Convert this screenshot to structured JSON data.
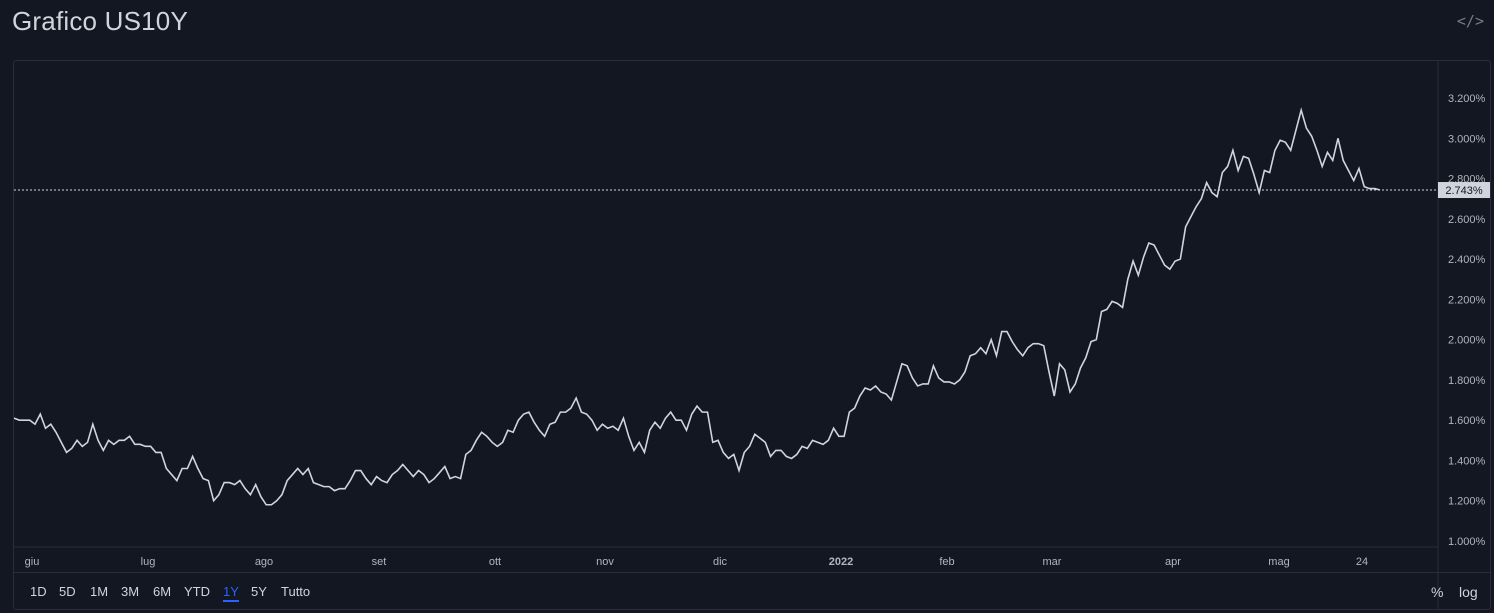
{
  "header": {
    "title": "Grafico US10Y",
    "embed_icon": "code-embed-icon"
  },
  "toolbar": {
    "ranges": [
      "1D",
      "5D",
      "1M",
      "3M",
      "6M",
      "YTD",
      "1Y",
      "5Y",
      "Tutto"
    ],
    "active_range": "1Y",
    "percent_label": "%",
    "log_label": "log"
  },
  "colors": {
    "background": "#131722",
    "line": "#d1d4dc",
    "text": "#b2b5be",
    "active": "#2962ff",
    "price_label_bg": "#d1d4dc"
  },
  "chart_data": {
    "type": "line",
    "title": "Grafico US10Y",
    "xlabel": "",
    "ylabel": "",
    "x_ticks": [
      "giu",
      "lug",
      "ago",
      "set",
      "ott",
      "nov",
      "dic",
      "2022",
      "feb",
      "mar",
      "apr",
      "mag",
      "24"
    ],
    "y_ticks": [
      "1.000%",
      "1.200%",
      "1.400%",
      "1.600%",
      "1.800%",
      "2.000%",
      "2.200%",
      "2.400%",
      "2.600%",
      "2.800%",
      "3.000%",
      "3.200%"
    ],
    "ylim": [
      1.0,
      3.22
    ],
    "grid": false,
    "last_value_label": "2.743%",
    "last_value": 2.743,
    "series": [
      {
        "values": [
          1.61,
          1.6,
          1.6,
          1.6,
          1.58,
          1.63,
          1.56,
          1.58,
          1.54,
          1.49,
          1.44,
          1.46,
          1.5,
          1.47,
          1.49,
          1.58,
          1.5,
          1.45,
          1.5,
          1.48,
          1.5,
          1.5,
          1.52,
          1.48,
          1.48,
          1.47,
          1.47,
          1.44,
          1.44,
          1.36,
          1.33,
          1.3,
          1.36,
          1.36,
          1.42,
          1.36,
          1.31,
          1.3,
          1.2,
          1.23,
          1.29,
          1.29,
          1.28,
          1.3,
          1.26,
          1.23,
          1.28,
          1.22,
          1.18,
          1.18,
          1.2,
          1.23,
          1.3,
          1.33,
          1.36,
          1.33,
          1.36,
          1.29,
          1.28,
          1.27,
          1.27,
          1.25,
          1.26,
          1.26,
          1.3,
          1.35,
          1.35,
          1.31,
          1.28,
          1.32,
          1.3,
          1.29,
          1.33,
          1.35,
          1.38,
          1.35,
          1.32,
          1.35,
          1.33,
          1.29,
          1.31,
          1.34,
          1.37,
          1.31,
          1.32,
          1.31,
          1.43,
          1.45,
          1.5,
          1.54,
          1.52,
          1.49,
          1.47,
          1.49,
          1.55,
          1.54,
          1.6,
          1.63,
          1.64,
          1.59,
          1.55,
          1.52,
          1.58,
          1.59,
          1.64,
          1.64,
          1.66,
          1.71,
          1.64,
          1.63,
          1.6,
          1.55,
          1.58,
          1.56,
          1.57,
          1.55,
          1.61,
          1.52,
          1.45,
          1.49,
          1.44,
          1.55,
          1.59,
          1.56,
          1.61,
          1.64,
          1.6,
          1.6,
          1.55,
          1.63,
          1.67,
          1.64,
          1.64,
          1.49,
          1.5,
          1.44,
          1.41,
          1.43,
          1.35,
          1.44,
          1.47,
          1.53,
          1.51,
          1.49,
          1.42,
          1.45,
          1.45,
          1.42,
          1.41,
          1.43,
          1.47,
          1.46,
          1.5,
          1.49,
          1.48,
          1.5,
          1.56,
          1.52,
          1.52,
          1.64,
          1.66,
          1.72,
          1.76,
          1.75,
          1.77,
          1.74,
          1.73,
          1.7,
          1.79,
          1.88,
          1.87,
          1.81,
          1.77,
          1.78,
          1.78,
          1.87,
          1.81,
          1.79,
          1.79,
          1.78,
          1.8,
          1.84,
          1.92,
          1.93,
          1.96,
          1.93,
          2.0,
          1.92,
          2.04,
          2.04,
          1.99,
          1.95,
          1.92,
          1.96,
          1.98,
          1.98,
          1.97,
          1.84,
          1.72,
          1.88,
          1.85,
          1.74,
          1.78,
          1.86,
          1.91,
          1.99,
          2.0,
          2.14,
          2.15,
          2.19,
          2.18,
          2.16,
          2.3,
          2.39,
          2.32,
          2.41,
          2.48,
          2.47,
          2.42,
          2.37,
          2.35,
          2.39,
          2.4,
          2.56,
          2.61,
          2.66,
          2.7,
          2.78,
          2.73,
          2.71,
          2.83,
          2.86,
          2.94,
          2.84,
          2.91,
          2.9,
          2.82,
          2.73,
          2.84,
          2.83,
          2.94,
          2.99,
          2.98,
          2.94,
          3.04,
          3.14,
          3.05,
          3.01,
          2.94,
          2.86,
          2.93,
          2.89,
          3.0,
          2.89,
          2.84,
          2.79,
          2.85,
          2.76,
          2.75,
          2.75,
          2.743
        ]
      }
    ]
  }
}
